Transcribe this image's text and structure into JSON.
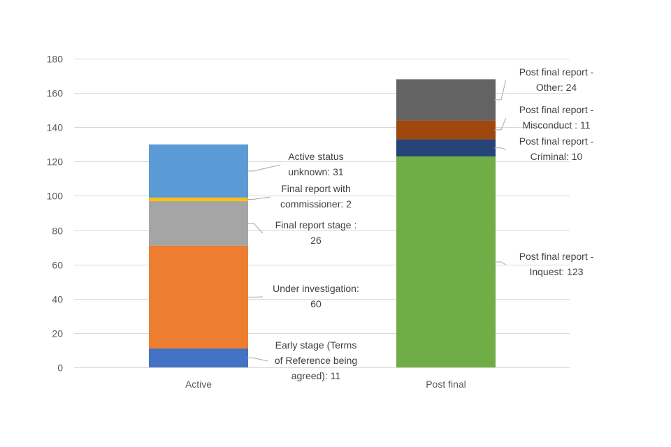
{
  "chart_data": {
    "type": "bar",
    "stacked": true,
    "categories": [
      "Active",
      "Post final"
    ],
    "ylim": [
      0,
      180
    ],
    "yticks": [
      0,
      20,
      40,
      60,
      80,
      100,
      120,
      140,
      160,
      180
    ],
    "grid": true,
    "legend": "none",
    "series": [
      {
        "name": "Early stage (Terms of Reference being agreed)",
        "color": "#4472c4",
        "values": [
          11,
          0
        ],
        "label_lines": [
          "Early stage (Terms",
          "of Reference being",
          "agreed): 11"
        ]
      },
      {
        "name": "Under investigation",
        "color": "#ed7d31",
        "values": [
          60,
          0
        ],
        "label_lines": [
          "Under investigation:",
          "60"
        ]
      },
      {
        "name": "Final report stage",
        "color": "#a5a5a5",
        "values": [
          26,
          0
        ],
        "label_lines": [
          "Final report stage :",
          "26"
        ]
      },
      {
        "name": "Final report with commissioner",
        "color": "#ffc000",
        "values": [
          2,
          0
        ],
        "label_lines": [
          "Final report with",
          "commissioner: 2"
        ]
      },
      {
        "name": "Active status unknown",
        "color": "#5b9bd5",
        "values": [
          31,
          0
        ],
        "label_lines": [
          "Active status",
          "unknown: 31"
        ]
      },
      {
        "name": "Post final report - Inquest",
        "color": "#70ad47",
        "values": [
          0,
          123
        ],
        "label_lines": [
          "Post final report -",
          "Inquest: 123"
        ]
      },
      {
        "name": "Post final report - Criminal",
        "color": "#264478",
        "values": [
          0,
          10
        ],
        "label_lines": [
          "Post final report -",
          "Criminal: 10"
        ]
      },
      {
        "name": "Post final report - Misconduct",
        "color": "#9e480e",
        "values": [
          0,
          11
        ],
        "label_lines": [
          "Post final report -",
          "Misconduct : 11"
        ]
      },
      {
        "name": "Post final report - Other",
        "color": "#636363",
        "values": [
          0,
          24
        ],
        "label_lines": [
          "Post final report -",
          "Other: 24"
        ]
      }
    ]
  }
}
